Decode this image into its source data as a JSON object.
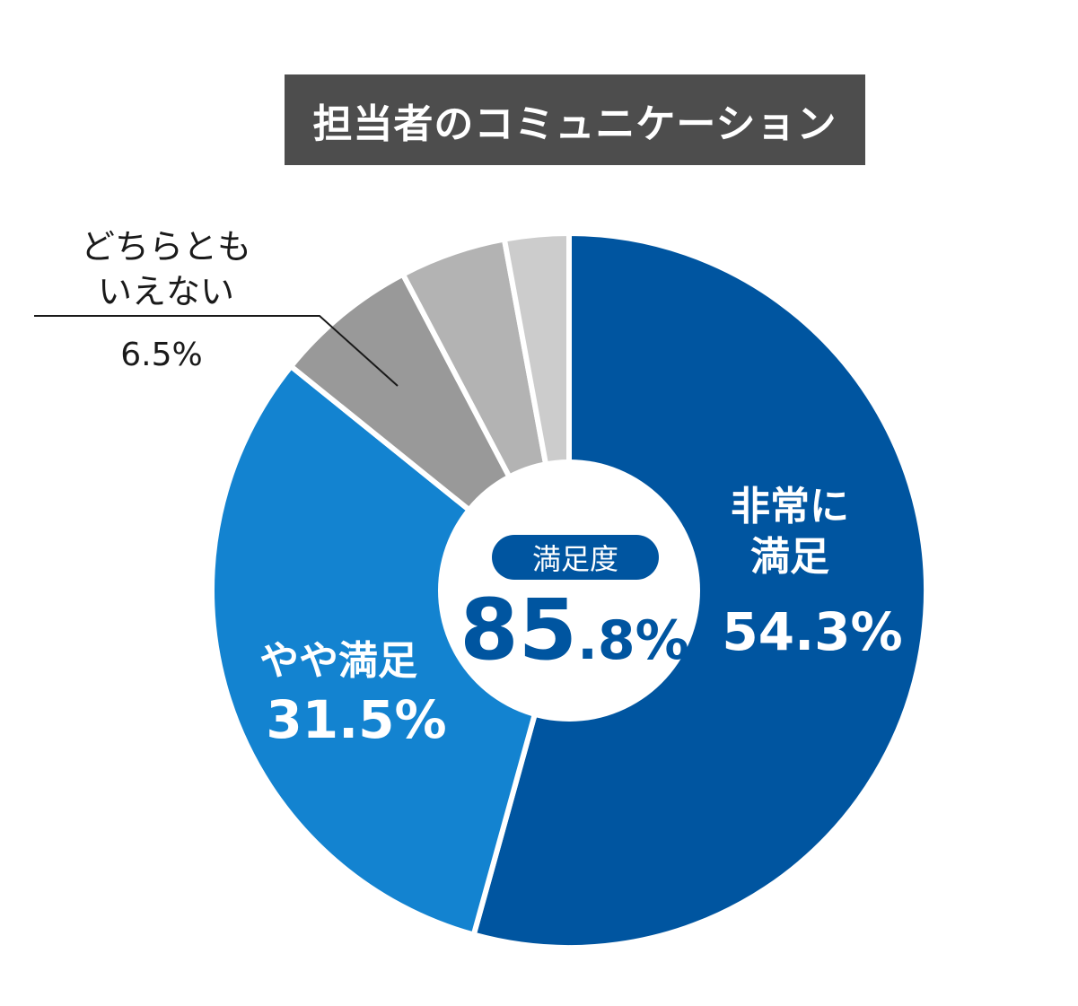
{
  "chart_data": {
    "type": "pie",
    "style": "donut",
    "title": "担当者のコミュニケーション",
    "slices": [
      {
        "name": "非常に満足",
        "value": 54.3,
        "label": "54.3%",
        "color": "#0055a0"
      },
      {
        "name": "やや満足",
        "value": 31.5,
        "label": "31.5%",
        "color": "#1383d0"
      },
      {
        "name": "どちらともいえない",
        "value": 6.5,
        "label": "6.5%",
        "color": "#999999"
      },
      {
        "name": "",
        "value": 4.8,
        "label": "",
        "color": "#b3b3b3"
      },
      {
        "name": "",
        "value": 2.9,
        "label": "",
        "color": "#cccccc"
      }
    ],
    "center": {
      "label": "満足度",
      "value_big": "85",
      "value_small": ".8%"
    }
  },
  "labels": {
    "very_cat_line1": "非常に",
    "very_cat_line2": "満足",
    "some_cat": "やや満足",
    "neutral_line1": "どちらとも",
    "neutral_line2": "いえない"
  }
}
